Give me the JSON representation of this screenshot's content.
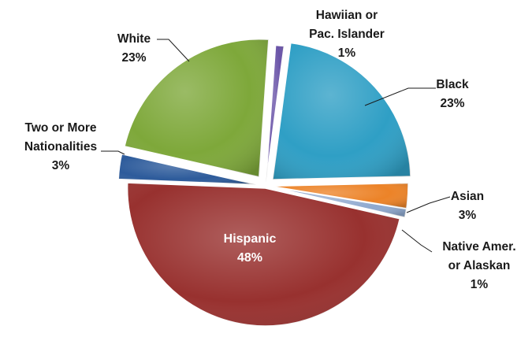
{
  "chart_data": {
    "type": "pie",
    "title": "",
    "slices": [
      {
        "name": "Hawiian or Pac. Islander",
        "label_lines": [
          "Hawiian or",
          "Pac. Islander",
          "1%"
        ],
        "value": 1,
        "color": "#6a54a8"
      },
      {
        "name": "Black",
        "label_lines": [
          "Black",
          "23%"
        ],
        "value": 23,
        "color": "#2f9fc5"
      },
      {
        "name": "Asian",
        "label_lines": [
          "Asian",
          "3%"
        ],
        "value": 3,
        "color": "#ec8328"
      },
      {
        "name": "Native Amer. or Alaskan",
        "label_lines": [
          "Native Amer.",
          "or Alaskan",
          "1%"
        ],
        "value": 1,
        "color": "#8fa9cf"
      },
      {
        "name": "Hispanic",
        "label_lines": [
          "Hispanic",
          "48%"
        ],
        "value": 48,
        "color": "#98312f"
      },
      {
        "name": "Two or More Nationalities",
        "label_lines": [
          "Two or More",
          "Nationalities",
          "3%"
        ],
        "value": 3,
        "color": "#2d5b9b"
      },
      {
        "name": "White",
        "label_lines": [
          "White",
          "23%"
        ],
        "value": 23,
        "color": "#7ea83a"
      }
    ]
  }
}
